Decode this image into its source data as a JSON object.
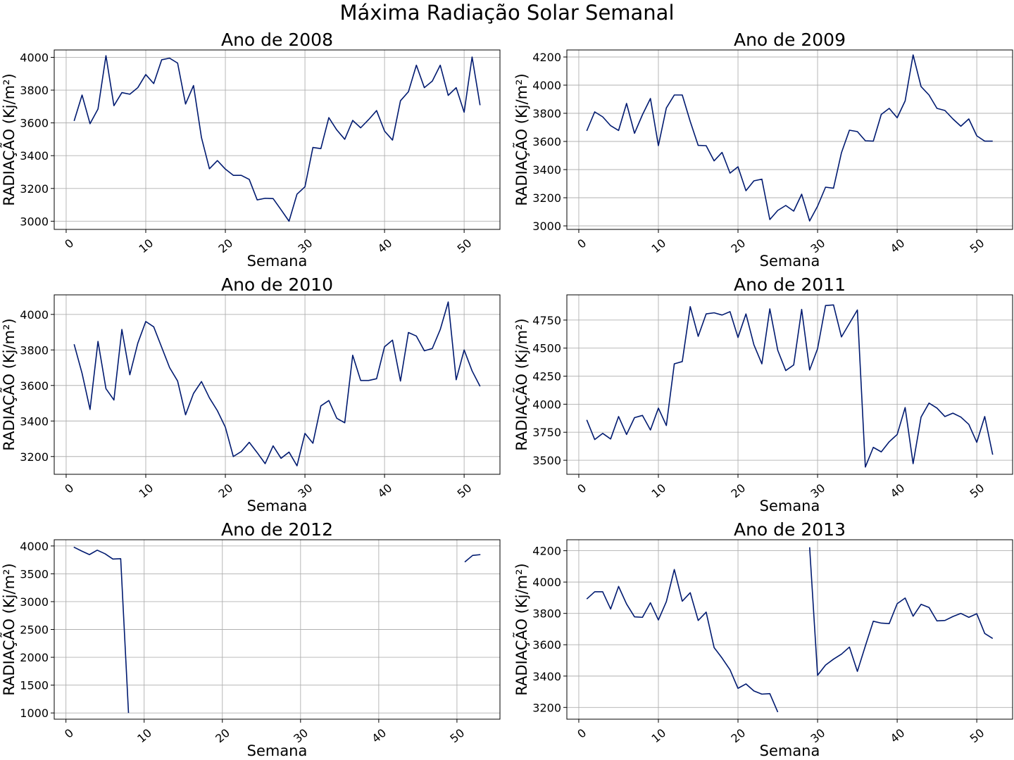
{
  "figure": {
    "suptitle": "Máxima Radiação Solar Semanal"
  },
  "style": {
    "line_color": "#001a70",
    "grid_color": "#b0b0b0"
  },
  "chart_data": [
    {
      "type": "line",
      "title": "Ano de 2008",
      "xlabel": "Semana",
      "ylabel": "RADIAÇÃO (Kj/m²)",
      "grid": true,
      "xlim": [
        -1.5,
        54.5
      ],
      "ylim": [
        2950,
        4045
      ],
      "xticks": [
        0,
        10,
        20,
        30,
        40,
        50
      ],
      "yticks": [
        3000,
        3200,
        3400,
        3600,
        3800,
        4000
      ],
      "x": [
        1,
        2,
        3,
        4,
        5,
        6,
        7,
        8,
        9,
        10,
        11,
        12,
        13,
        14,
        15,
        16,
        17,
        18,
        19,
        20,
        21,
        22,
        23,
        24,
        25,
        26,
        27,
        28,
        29,
        30,
        31,
        32,
        33,
        34,
        35,
        36,
        37,
        38,
        39,
        40,
        41,
        42,
        43,
        44,
        45,
        46,
        47,
        48,
        49,
        50,
        51,
        52
      ],
      "y": [
        3612,
        3770,
        3595,
        3685,
        4010,
        3705,
        3785,
        3775,
        3815,
        3895,
        3840,
        3985,
        3995,
        3965,
        3715,
        3828,
        3510,
        3320,
        3370,
        3318,
        3280,
        3280,
        3255,
        3130,
        3140,
        3138,
        3070,
        3000,
        3165,
        3210,
        3450,
        3443,
        3632,
        3557,
        3500,
        3615,
        3570,
        3620,
        3675,
        3550,
        3495,
        3735,
        3790,
        3952,
        3815,
        3855,
        3952,
        3768,
        3815,
        3665,
        4002,
        3708
      ]
    },
    {
      "type": "line",
      "title": "Ano de 2009",
      "xlabel": "Semana",
      "ylabel": "RADIAÇÃO (Kj/m²)",
      "grid": true,
      "xlim": [
        -1.5,
        54.5
      ],
      "ylim": [
        2975,
        4250
      ],
      "xticks": [
        0,
        10,
        20,
        30,
        40,
        50
      ],
      "yticks": [
        3000,
        3200,
        3400,
        3600,
        3800,
        4000,
        4200
      ],
      "x": [
        1,
        2,
        3,
        4,
        5,
        6,
        7,
        8,
        9,
        10,
        11,
        12,
        13,
        14,
        15,
        16,
        17,
        18,
        19,
        20,
        21,
        22,
        23,
        24,
        25,
        26,
        27,
        28,
        29,
        30,
        31,
        32,
        33,
        34,
        35,
        36,
        37,
        38,
        39,
        40,
        41,
        42,
        43,
        44,
        45,
        46,
        47,
        48,
        49,
        50,
        51,
        52
      ],
      "y": [
        3675,
        3810,
        3775,
        3712,
        3678,
        3870,
        3658,
        3790,
        3905,
        3570,
        3838,
        3930,
        3930,
        3742,
        3572,
        3570,
        3462,
        3522,
        3375,
        3420,
        3250,
        3320,
        3332,
        3045,
        3110,
        3145,
        3105,
        3225,
        3035,
        3140,
        3275,
        3268,
        3520,
        3680,
        3670,
        3605,
        3602,
        3792,
        3835,
        3768,
        3888,
        4215,
        3990,
        3930,
        3835,
        3820,
        3760,
        3708,
        3760,
        3640,
        3602,
        3602
      ]
    },
    {
      "type": "line",
      "title": "Ano de 2010",
      "xlabel": "Semana",
      "ylabel": "RADIAÇÃO (Kj/m²)",
      "grid": true,
      "xlim": [
        -1.5,
        54.5
      ],
      "ylim": [
        3100,
        4110
      ],
      "xticks": [
        0,
        10,
        20,
        30,
        40,
        50
      ],
      "yticks": [
        3200,
        3400,
        3600,
        3800,
        4000
      ],
      "x": [
        1,
        2,
        3,
        4,
        5,
        6,
        7,
        8,
        9,
        10,
        11,
        12,
        13,
        14,
        15,
        16,
        17,
        18,
        19,
        20,
        21,
        22,
        23,
        24,
        25,
        26,
        27,
        28,
        29,
        30,
        31,
        32,
        33,
        34,
        35,
        36,
        37,
        38,
        39,
        40,
        41,
        42,
        43,
        44,
        45,
        46,
        47,
        48,
        49,
        50,
        51,
        52
      ],
      "y": [
        3832,
        3668,
        3465,
        3848,
        3582,
        3518,
        3915,
        3660,
        3838,
        3960,
        3930,
        3815,
        3700,
        3625,
        3435,
        3555,
        3622,
        3530,
        3458,
        3365,
        3200,
        3228,
        3280,
        3222,
        3160,
        3260,
        3190,
        3225,
        3148,
        3330,
        3275,
        3485,
        3515,
        3415,
        3390,
        3770,
        3628,
        3628,
        3638,
        3818,
        3855,
        3625,
        3898,
        3878,
        3795,
        3808,
        3915,
        4070,
        3632,
        3800,
        3682,
        3595
      ]
    },
    {
      "type": "line",
      "title": "Ano de 2011",
      "xlabel": "Semana",
      "ylabel": "RADIAÇÃO (Kj/m²)",
      "grid": true,
      "xlim": [
        -1.5,
        54.5
      ],
      "ylim": [
        3375,
        4975
      ],
      "xticks": [
        0,
        10,
        20,
        30,
        40,
        50
      ],
      "yticks": [
        3500,
        3750,
        4000,
        4250,
        4500,
        4750
      ],
      "x": [
        1,
        2,
        3,
        4,
        5,
        6,
        7,
        8,
        9,
        10,
        11,
        12,
        13,
        14,
        15,
        16,
        17,
        18,
        19,
        20,
        21,
        22,
        23,
        24,
        25,
        26,
        27,
        28,
        29,
        30,
        31,
        32,
        33,
        34,
        35,
        36,
        37,
        38,
        39,
        40,
        41,
        42,
        43,
        44,
        45,
        46,
        47,
        48,
        49,
        50,
        51,
        52
      ],
      "y": [
        3860,
        3685,
        3740,
        3690,
        3890,
        3730,
        3880,
        3900,
        3770,
        3965,
        3810,
        4360,
        4380,
        4870,
        4605,
        4805,
        4815,
        4795,
        4825,
        4595,
        4805,
        4530,
        4360,
        4850,
        4480,
        4300,
        4350,
        4845,
        4305,
        4495,
        4880,
        4885,
        4600,
        4720,
        4840,
        3440,
        3615,
        3575,
        3665,
        3730,
        3970,
        3470,
        3885,
        4010,
        3965,
        3890,
        3920,
        3885,
        3820,
        3660,
        3890,
        3550
      ]
    },
    {
      "type": "line",
      "title": "Ano de 2012",
      "xlabel": "Semana",
      "ylabel": "RADIAÇÃO (Kj/m²)",
      "grid": true,
      "xlim": [
        -1.5,
        55.5
      ],
      "ylim": [
        888,
        4112
      ],
      "xticks": [
        0,
        10,
        20,
        30,
        40,
        50
      ],
      "yticks": [
        1000,
        1500,
        2000,
        2500,
        3000,
        3500,
        4000
      ],
      "x": [
        1,
        2,
        3,
        4,
        5,
        6,
        7,
        8,
        null,
        51,
        52,
        53
      ],
      "y": [
        3980,
        3910,
        3845,
        3925,
        3860,
        3765,
        3772,
        1000,
        null,
        3712,
        3830,
        3845
      ]
    },
    {
      "type": "line",
      "title": "Ano de 2013",
      "xlabel": "Semana",
      "ylabel": "RADIAÇÃO (Kj/m²)",
      "grid": true,
      "xlim": [
        -1.5,
        54.5
      ],
      "ylim": [
        3125,
        4270
      ],
      "xticks": [
        0,
        10,
        20,
        30,
        40,
        50
      ],
      "yticks": [
        3200,
        3400,
        3600,
        3800,
        4000,
        4200
      ],
      "x": [
        1,
        2,
        3,
        4,
        5,
        6,
        7,
        8,
        9,
        10,
        11,
        12,
        13,
        14,
        15,
        16,
        17,
        18,
        19,
        20,
        21,
        22,
        23,
        24,
        25,
        null,
        29,
        30,
        31,
        32,
        33,
        34,
        35,
        36,
        37,
        38,
        39,
        40,
        41,
        42,
        43,
        44,
        45,
        46,
        47,
        48,
        49,
        50,
        51,
        52
      ],
      "y": [
        3892,
        3938,
        3938,
        3828,
        3972,
        3860,
        3778,
        3775,
        3868,
        3758,
        3875,
        4080,
        3878,
        3932,
        3755,
        3808,
        3582,
        3515,
        3440,
        3322,
        3350,
        3305,
        3285,
        3288,
        3170,
        null,
        4222,
        3405,
        3470,
        3508,
        3540,
        3585,
        3430,
        3592,
        3750,
        3738,
        3735,
        3862,
        3898,
        3782,
        3858,
        3838,
        3752,
        3755,
        3780,
        3800,
        3775,
        3798,
        3672,
        3640
      ]
    }
  ]
}
